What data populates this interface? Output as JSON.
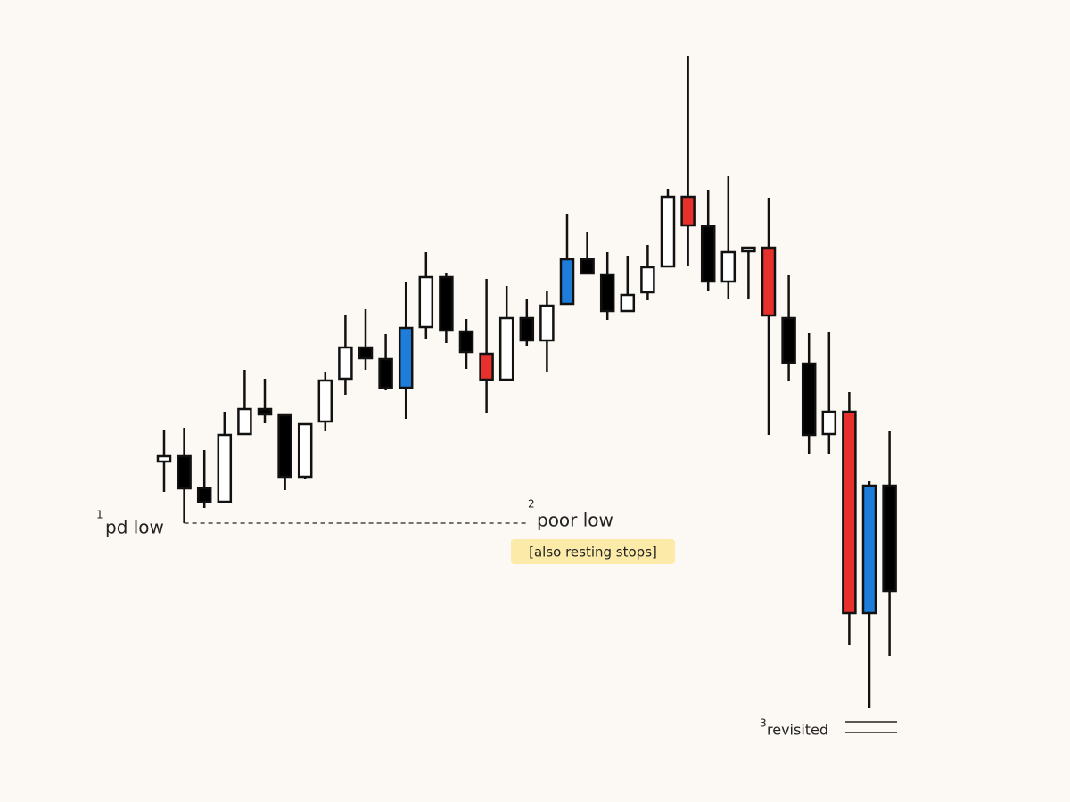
{
  "chart_data": {
    "type": "candlestick",
    "ylim": [
      0,
      900
    ],
    "open": [
      382,
      388,
      352,
      337,
      413,
      441,
      434,
      365,
      427,
      475,
      510,
      497,
      465,
      533,
      589,
      528,
      503,
      474,
      543,
      518,
      559,
      609,
      592,
      551,
      572,
      601,
      679,
      646,
      584,
      618,
      622,
      543,
      492,
      413,
      438,
      212,
      355
    ],
    "high": [
      417,
      420,
      395,
      438,
      485,
      475,
      434,
      424,
      482,
      547,
      553,
      525,
      584,
      617,
      594,
      542,
      587,
      579,
      564,
      574,
      660,
      640,
      617,
      613,
      625,
      688,
      837,
      687,
      702,
      622,
      678,
      591,
      526,
      527,
      460,
      360,
      416
    ],
    "low": [
      348,
      313,
      330,
      337,
      413,
      425,
      350,
      362,
      416,
      457,
      485,
      462,
      430,
      520,
      515,
      486,
      436,
      474,
      512,
      482,
      558,
      592,
      541,
      551,
      563,
      601,
      601,
      574,
      564,
      565,
      412,
      472,
      390,
      390,
      176,
      106,
      164
    ],
    "close": [
      388,
      352,
      337,
      412,
      441,
      435,
      365,
      424,
      473,
      510,
      498,
      465,
      532,
      589,
      529,
      505,
      474,
      543,
      518,
      557,
      609,
      593,
      551,
      569,
      600,
      679,
      647,
      584,
      617,
      622,
      546,
      493,
      412,
      438,
      212,
      355,
      237
    ],
    "colors": [
      "#ffffff",
      "#000000",
      "#000000",
      "#ffffff",
      "#ffffff",
      "#000000",
      "#000000",
      "#ffffff",
      "#ffffff",
      "#ffffff",
      "#000000",
      "#000000",
      "#1e7ddb",
      "#ffffff",
      "#000000",
      "#000000",
      "#e8312c",
      "#ffffff",
      "#000000",
      "#ffffff",
      "#1e7ddb",
      "#000000",
      "#000000",
      "#ffffff",
      "#ffffff",
      "#ffffff",
      "#e8312c",
      "#000000",
      "#ffffff",
      "#ffffff",
      "#e8312c",
      "#000000",
      "#000000",
      "#ffffff",
      "#e8312c",
      "#1e7ddb",
      "#000000"
    ],
    "annotations": [
      {
        "number": "1",
        "text": "pd low"
      },
      {
        "number": "2",
        "text": "poor low",
        "note": "[also resting stops]"
      },
      {
        "number": "3",
        "text": "revisited"
      }
    ]
  }
}
